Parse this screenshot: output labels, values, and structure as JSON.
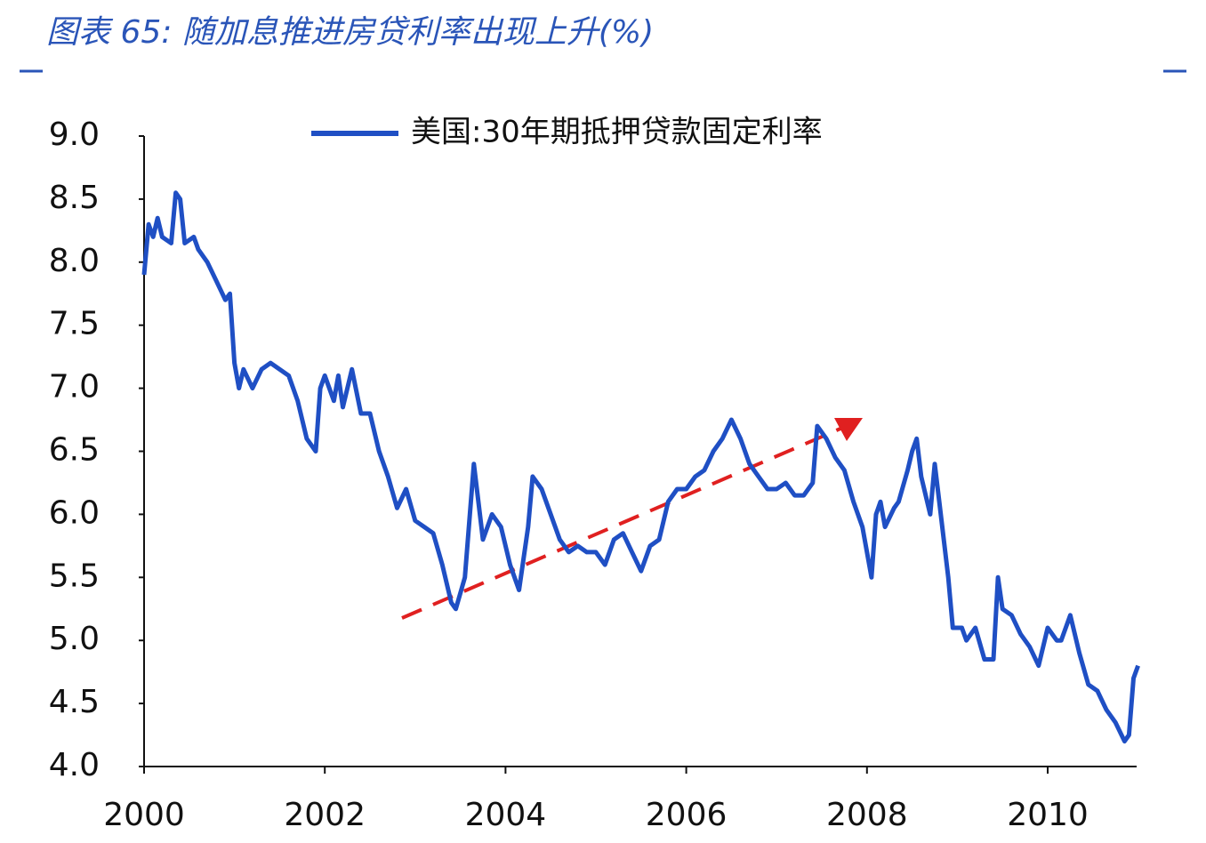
{
  "chart_data": {
    "type": "line",
    "title": "图表 65: 随加息推进房贷利率出现上升(%)",
    "x": [
      2000.0,
      2000.05,
      2000.1,
      2000.15,
      2000.2,
      2000.3,
      2000.35,
      2000.4,
      2000.45,
      2000.55,
      2000.6,
      2000.7,
      2000.8,
      2000.9,
      2000.95,
      2001.0,
      2001.05,
      2001.1,
      2001.2,
      2001.3,
      2001.4,
      2001.5,
      2001.6,
      2001.7,
      2001.8,
      2001.9,
      2001.95,
      2002.0,
      2002.05,
      2002.1,
      2002.15,
      2002.2,
      2002.3,
      2002.4,
      2002.5,
      2002.6,
      2002.7,
      2002.8,
      2002.9,
      2003.0,
      2003.1,
      2003.2,
      2003.3,
      2003.4,
      2003.45,
      2003.55,
      2003.65,
      2003.75,
      2003.85,
      2003.95,
      2004.05,
      2004.15,
      2004.25,
      2004.3,
      2004.4,
      2004.5,
      2004.6,
      2004.7,
      2004.8,
      2004.9,
      2005.0,
      2005.1,
      2005.2,
      2005.3,
      2005.4,
      2005.5,
      2005.6,
      2005.7,
      2005.8,
      2005.9,
      2006.0,
      2006.1,
      2006.2,
      2006.3,
      2006.4,
      2006.5,
      2006.6,
      2006.7,
      2006.8,
      2006.9,
      2007.0,
      2007.1,
      2007.2,
      2007.3,
      2007.4,
      2007.45,
      2007.55,
      2007.65,
      2007.75,
      2007.85,
      2007.95,
      2008.05,
      2008.1,
      2008.15,
      2008.2,
      2008.3,
      2008.35,
      2008.45,
      2008.5,
      2008.55,
      2008.6,
      2008.7,
      2008.75,
      2008.8,
      2008.9,
      2008.95,
      2009.05,
      2009.1,
      2009.2,
      2009.3,
      2009.4,
      2009.45,
      2009.5,
      2009.6,
      2009.7,
      2009.8,
      2009.9,
      2010.0,
      2010.1,
      2010.15,
      2010.25,
      2010.35,
      2010.45,
      2010.55,
      2010.65,
      2010.75,
      2010.85,
      2010.9,
      2010.95,
      2011.0
    ],
    "series": [
      {
        "name": "美国:30年期抵押贷款固定利率",
        "color": "#1f4fc4",
        "values": [
          7.9,
          8.3,
          8.2,
          8.35,
          8.2,
          8.15,
          8.55,
          8.5,
          8.15,
          8.2,
          8.1,
          8.0,
          7.85,
          7.7,
          7.75,
          7.2,
          7.0,
          7.15,
          7.0,
          7.15,
          7.2,
          7.15,
          7.1,
          6.9,
          6.6,
          6.5,
          7.0,
          7.1,
          7.0,
          6.9,
          7.1,
          6.85,
          7.15,
          6.8,
          6.8,
          6.5,
          6.3,
          6.05,
          6.2,
          5.95,
          5.9,
          5.85,
          5.6,
          5.3,
          5.25,
          5.5,
          6.4,
          5.8,
          6.0,
          5.9,
          5.6,
          5.4,
          5.9,
          6.3,
          6.2,
          6.0,
          5.8,
          5.7,
          5.75,
          5.7,
          5.7,
          5.6,
          5.8,
          5.85,
          5.7,
          5.55,
          5.75,
          5.8,
          6.1,
          6.2,
          6.2,
          6.3,
          6.35,
          6.5,
          6.6,
          6.75,
          6.6,
          6.4,
          6.3,
          6.2,
          6.2,
          6.25,
          6.15,
          6.15,
          6.25,
          6.7,
          6.6,
          6.45,
          6.35,
          6.1,
          5.9,
          5.5,
          6.0,
          6.1,
          5.9,
          6.05,
          6.1,
          6.35,
          6.5,
          6.6,
          6.3,
          6.0,
          6.4,
          6.1,
          5.5,
          5.1,
          5.1,
          5.0,
          5.1,
          4.85,
          4.85,
          5.5,
          5.25,
          5.2,
          5.05,
          4.95,
          4.8,
          5.1,
          5.0,
          5.0,
          5.2,
          4.9,
          4.65,
          4.6,
          4.45,
          4.35,
          4.2,
          4.25,
          4.7,
          4.8
        ]
      }
    ],
    "xlim": [
      2000,
      2011
    ],
    "xticks": [
      2000,
      2002,
      2004,
      2006,
      2008,
      2010
    ],
    "ylim": [
      4,
      9
    ],
    "yticks": [
      {
        "value": 4,
        "label": "4.0"
      },
      4.5,
      {
        "value": 5,
        "label": "5.0"
      },
      5.5,
      {
        "value": 6,
        "label": "6.0"
      },
      6.5,
      {
        "value": 7,
        "label": "7.0"
      },
      7.5,
      {
        "value": 8,
        "label": "8.0"
      },
      8.5,
      {
        "value": 9,
        "label": "9.0"
      }
    ]
  }
}
